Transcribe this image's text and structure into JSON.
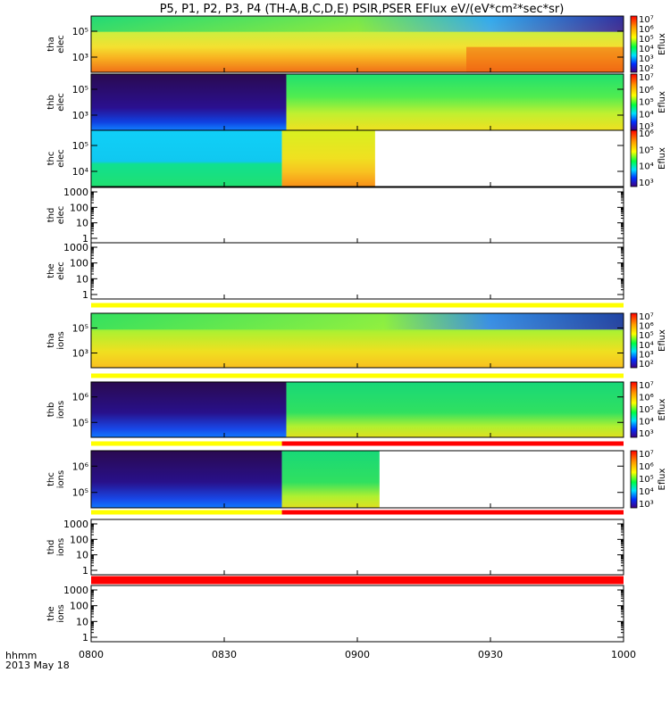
{
  "title": "P5, P1, P2, P3, P4 (TH-A,B,C,D,E) PSIR,PSER EFlux eV/(eV*cm²*sec*sr)",
  "footer": {
    "time_label": "hhmm",
    "date_label": "2013 May 18"
  },
  "colors": {
    "sat_bar_yellow": "#ffff00",
    "sat_bar_red": "#ff0000",
    "axis": "#000000"
  },
  "chart_data": {
    "type": "heatmap",
    "x_axis": {
      "range": [
        "08:00",
        "10:00"
      ],
      "tick_labels": [
        "0800",
        "0830",
        "0900",
        "0930",
        "1000"
      ]
    },
    "colorscale": "rainbow (purple-blue-cyan-green-yellow-red)",
    "panels": [
      {
        "id": "tha-elec",
        "ylabel": [
          "tha",
          "elec"
        ],
        "y_ticks": [
          "10⁵",
          "10³"
        ],
        "cbar_label": "Eflux",
        "cbar_ticks": [
          "10⁷",
          "10⁶",
          "10⁵",
          "10⁴",
          "10³",
          "10²"
        ],
        "data_extent": [
          "08:00",
          "10:00"
        ]
      },
      {
        "id": "thb-elec",
        "ylabel": [
          "thb",
          "elec"
        ],
        "y_ticks": [
          "10⁵",
          "10³"
        ],
        "cbar_label": "Eflux",
        "cbar_ticks": [
          "10⁷",
          "10⁶",
          "10⁵",
          "10⁴",
          "10³"
        ],
        "data_extent": [
          "08:00",
          "10:00"
        ],
        "transition": "08:44"
      },
      {
        "id": "thc-elec",
        "ylabel": [
          "thc",
          "elec"
        ],
        "y_ticks": [
          "10⁵",
          "10⁴"
        ],
        "cbar_label": "Eflux",
        "cbar_ticks": [
          "10⁶",
          "10⁵",
          "10⁴",
          "10³"
        ],
        "data_extent": [
          "08:00",
          "09:04"
        ],
        "transition": "08:43"
      },
      {
        "id": "thd-elec",
        "ylabel": [
          "thd",
          "elec"
        ],
        "y_ticks": [
          "1000",
          "100",
          "10",
          "1"
        ],
        "empty": true
      },
      {
        "id": "the-elec",
        "ylabel": [
          "the",
          "elec"
        ],
        "y_ticks": [
          "1000",
          "100",
          "10",
          "1"
        ],
        "empty": true
      },
      {
        "id": "tha-ions",
        "ylabel": [
          "tha",
          "ions"
        ],
        "y_ticks": [
          "10⁵",
          "10³"
        ],
        "cbar_label": "Eflux",
        "cbar_ticks": [
          "10⁷",
          "10⁶",
          "10⁵",
          "10⁴",
          "10³",
          "10²"
        ],
        "data_extent": [
          "08:00",
          "10:00"
        ]
      },
      {
        "id": "thb-ions",
        "ylabel": [
          "thb",
          "ions"
        ],
        "y_ticks": [
          "10⁶",
          "10⁵"
        ],
        "cbar_label": "Eflux",
        "cbar_ticks": [
          "10⁷",
          "10⁶",
          "10⁵",
          "10⁴",
          "10³"
        ],
        "data_extent": [
          "08:00",
          "10:00"
        ],
        "transition": "08:44"
      },
      {
        "id": "thc-ions",
        "ylabel": [
          "thc",
          "ions"
        ],
        "y_ticks": [
          "10⁶",
          "10⁵"
        ],
        "cbar_label": "Eflux",
        "cbar_ticks": [
          "10⁷",
          "10⁶",
          "10⁵",
          "10⁴",
          "10³"
        ],
        "data_extent": [
          "08:00",
          "09:05"
        ],
        "transition": "08:43"
      },
      {
        "id": "thd-ions",
        "ylabel": [
          "thd",
          "ions"
        ],
        "y_ticks": [
          "1000",
          "100",
          "10",
          "1"
        ],
        "empty": true
      },
      {
        "id": "the-ions",
        "ylabel": [
          "the",
          "ions"
        ],
        "y_ticks": [
          "1000",
          "100",
          "10",
          "1"
        ],
        "empty": true
      }
    ],
    "status_bars": [
      {
        "above": "tha-ions",
        "segments": [
          {
            "from": "08:00",
            "to": "10:00",
            "color": "yellow"
          }
        ]
      },
      {
        "above": "thb-ions",
        "segments": [
          {
            "from": "08:00",
            "to": "08:43",
            "color": "yellow"
          },
          {
            "from": "08:43",
            "to": "10:00",
            "color": "red"
          }
        ]
      },
      {
        "above": "thc-ions",
        "segments": [
          {
            "from": "08:00",
            "to": "08:43",
            "color": "yellow"
          },
          {
            "from": "08:43",
            "to": "10:00",
            "color": "red"
          }
        ]
      },
      {
        "above": "thd-ions",
        "segments": [
          {
            "from": "08:00",
            "to": "10:00",
            "color": "red"
          }
        ]
      },
      {
        "above": "the-ions",
        "segments": [
          {
            "from": "08:00",
            "to": "10:00",
            "color": "red"
          }
        ]
      },
      {
        "above": "tha-elec-gap",
        "segments": [
          {
            "from": "08:00",
            "to": "10:00",
            "color": "yellow"
          }
        ]
      }
    ]
  }
}
